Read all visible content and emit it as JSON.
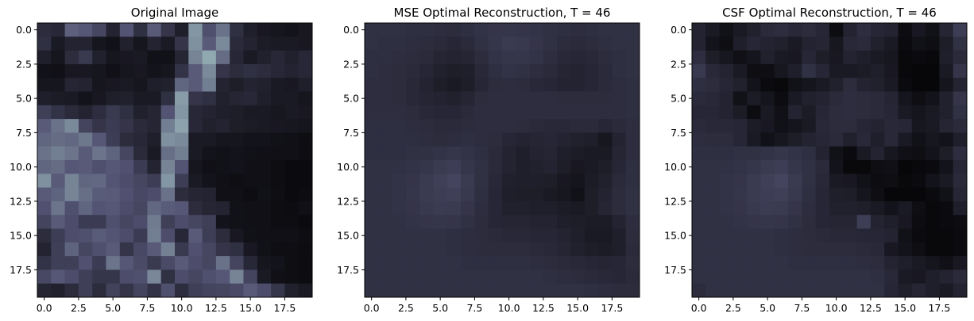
{
  "chart_data": [
    {
      "type": "heatmap",
      "title": "Original Image",
      "colormap": "bone",
      "vmin": 0,
      "vmax": 255,
      "grid": false,
      "xlim": [
        -0.5,
        19.5
      ],
      "ylim": [
        19.5,
        -0.5
      ],
      "xticks": [
        "0.0",
        "2.5",
        "5.0",
        "7.5",
        "10.0",
        "12.5",
        "15.0",
        "17.5"
      ],
      "yticks": [
        "0.0",
        "2.5",
        "5.0",
        "7.5",
        "10.0",
        "12.5",
        "15.0",
        "17.5"
      ],
      "values": [
        [
          50,
          45,
          105,
          98,
          80,
          40,
          95,
          55,
          100,
          60,
          35,
          150,
          90,
          120,
          55,
          35,
          28,
          25,
          22,
          28
        ],
        [
          55,
          30,
          40,
          40,
          25,
          20,
          38,
          25,
          40,
          30,
          60,
          145,
          100,
          140,
          48,
          40,
          32,
          30,
          30,
          28
        ],
        [
          35,
          25,
          50,
          65,
          38,
          25,
          28,
          30,
          20,
          20,
          42,
          135,
          165,
          115,
          44,
          30,
          38,
          45,
          38,
          45
        ],
        [
          20,
          18,
          28,
          28,
          25,
          18,
          25,
          28,
          22,
          25,
          58,
          100,
          140,
          60,
          50,
          55,
          50,
          45,
          40,
          45
        ],
        [
          25,
          25,
          42,
          40,
          25,
          28,
          30,
          25,
          35,
          38,
          110,
          100,
          130,
          40,
          34,
          40,
          38,
          30,
          28,
          35
        ],
        [
          35,
          32,
          30,
          22,
          28,
          35,
          38,
          30,
          30,
          55,
          155,
          60,
          55,
          38,
          42,
          45,
          35,
          30,
          30,
          25
        ],
        [
          72,
          58,
          48,
          40,
          52,
          65,
          55,
          38,
          42,
          95,
          150,
          45,
          40,
          35,
          34,
          30,
          30,
          26,
          30,
          28
        ],
        [
          100,
          120,
          140,
          78,
          60,
          68,
          60,
          48,
          42,
          130,
          160,
          45,
          38,
          40,
          34,
          32,
          30,
          28,
          26,
          24
        ],
        [
          110,
          115,
          112,
          125,
          98,
          70,
          50,
          45,
          35,
          145,
          140,
          30,
          30,
          25,
          25,
          22,
          22,
          20,
          18,
          15
        ],
        [
          120,
          130,
          122,
          100,
          122,
          108,
          80,
          48,
          30,
          118,
          130,
          30,
          22,
          20,
          22,
          20,
          18,
          18,
          18,
          15
        ],
        [
          110,
          115,
          98,
          100,
          90,
          98,
          92,
          68,
          40,
          135,
          95,
          25,
          18,
          20,
          22,
          18,
          18,
          15,
          12,
          12
        ],
        [
          145,
          100,
          135,
          110,
          112,
          95,
          88,
          80,
          70,
          150,
          70,
          30,
          22,
          18,
          16,
          18,
          18,
          15,
          12,
          12
        ],
        [
          100,
          108,
          135,
          118,
          102,
          100,
          92,
          82,
          88,
          120,
          50,
          42,
          40,
          18,
          18,
          15,
          20,
          16,
          12,
          14
        ],
        [
          92,
          122,
          90,
          110,
          95,
          98,
          88,
          80,
          112,
          102,
          98,
          50,
          42,
          40,
          20,
          18,
          18,
          15,
          14,
          18
        ],
        [
          78,
          100,
          88,
          68,
          68,
          90,
          80,
          88,
          128,
          72,
          88,
          80,
          72,
          22,
          20,
          18,
          18,
          15,
          15,
          12
        ],
        [
          50,
          70,
          88,
          90,
          102,
          95,
          88,
          68,
          130,
          88,
          45,
          100,
          70,
          50,
          28,
          20,
          18,
          18,
          18,
          15
        ],
        [
          40,
          72,
          108,
          80,
          90,
          100,
          60,
          82,
          100,
          132,
          65,
          92,
          80,
          60,
          55,
          28,
          20,
          16,
          16,
          14
        ],
        [
          58,
          72,
          72,
          92,
          68,
          122,
          98,
          85,
          65,
          85,
          100,
          88,
          80,
          120,
          78,
          45,
          25,
          22,
          16,
          14
        ],
        [
          82,
          98,
          88,
          72,
          62,
          62,
          88,
          90,
          138,
          55,
          88,
          80,
          90,
          98,
          135,
          78,
          30,
          18,
          16,
          14
        ],
        [
          42,
          38,
          50,
          72,
          50,
          75,
          60,
          78,
          58,
          90,
          52,
          72,
          78,
          80,
          85,
          100,
          88,
          62,
          38,
          30
        ]
      ]
    },
    {
      "type": "heatmap",
      "title": "MSE Optimal Reconstruction, T = 46",
      "colormap": "bone",
      "vmin": 0,
      "vmax": 255,
      "grid": false,
      "xlim": [
        -0.5,
        19.5
      ],
      "ylim": [
        19.5,
        -0.5
      ],
      "xticks": [
        "0.0",
        "2.5",
        "5.0",
        "7.5",
        "10.0",
        "12.5",
        "15.0",
        "17.5"
      ],
      "yticks": [
        "0.0",
        "2.5",
        "5.0",
        "7.5",
        "10.0",
        "12.5",
        "15.0",
        "17.5"
      ],
      "values": [
        [
          56,
          56,
          56,
          54,
          54,
          52,
          50,
          54,
          58,
          60,
          62,
          60,
          58,
          56,
          54,
          52,
          54,
          56,
          56,
          56
        ],
        [
          56,
          54,
          54,
          52,
          50,
          48,
          44,
          48,
          56,
          62,
          66,
          64,
          60,
          56,
          50,
          48,
          50,
          54,
          56,
          56
        ],
        [
          54,
          54,
          52,
          50,
          48,
          42,
          40,
          42,
          50,
          58,
          62,
          62,
          58,
          52,
          46,
          44,
          46,
          50,
          54,
          56
        ],
        [
          54,
          52,
          50,
          48,
          44,
          38,
          34,
          36,
          46,
          54,
          58,
          56,
          52,
          48,
          42,
          40,
          44,
          48,
          54,
          56
        ],
        [
          52,
          52,
          50,
          46,
          40,
          34,
          30,
          34,
          44,
          50,
          52,
          50,
          46,
          44,
          40,
          40,
          44,
          48,
          52,
          54
        ],
        [
          52,
          52,
          50,
          46,
          42,
          40,
          38,
          42,
          50,
          52,
          52,
          52,
          52,
          52,
          50,
          50,
          50,
          50,
          52,
          54
        ],
        [
          52,
          52,
          52,
          50,
          46,
          44,
          44,
          48,
          52,
          52,
          52,
          52,
          52,
          52,
          52,
          52,
          52,
          52,
          52,
          54
        ],
        [
          54,
          54,
          54,
          52,
          50,
          48,
          48,
          50,
          52,
          52,
          52,
          50,
          48,
          46,
          46,
          48,
          48,
          44,
          48,
          52
        ],
        [
          54,
          54,
          54,
          54,
          52,
          50,
          52,
          54,
          52,
          50,
          44,
          40,
          42,
          44,
          40,
          38,
          36,
          26,
          40,
          52
        ],
        [
          54,
          54,
          54,
          56,
          56,
          58,
          62,
          58,
          54,
          48,
          40,
          36,
          40,
          42,
          36,
          32,
          30,
          30,
          42,
          52
        ],
        [
          56,
          56,
          56,
          58,
          62,
          66,
          70,
          62,
          56,
          48,
          40,
          36,
          38,
          40,
          34,
          28,
          30,
          34,
          44,
          54
        ],
        [
          56,
          56,
          58,
          60,
          66,
          72,
          78,
          66,
          56,
          46,
          38,
          36,
          36,
          34,
          28,
          24,
          32,
          38,
          48,
          54
        ],
        [
          56,
          56,
          58,
          62,
          66,
          70,
          72,
          64,
          54,
          44,
          36,
          34,
          34,
          30,
          26,
          20,
          34,
          40,
          50,
          56
        ],
        [
          56,
          56,
          58,
          60,
          64,
          68,
          66,
          60,
          52,
          44,
          38,
          38,
          36,
          36,
          32,
          30,
          34,
          42,
          50,
          56
        ],
        [
          56,
          56,
          56,
          58,
          60,
          62,
          60,
          56,
          50,
          44,
          42,
          42,
          40,
          40,
          36,
          34,
          32,
          32,
          40,
          52
        ],
        [
          56,
          56,
          56,
          56,
          56,
          56,
          54,
          52,
          50,
          48,
          46,
          46,
          44,
          44,
          40,
          36,
          30,
          30,
          36,
          50
        ],
        [
          56,
          56,
          56,
          56,
          56,
          56,
          54,
          52,
          50,
          50,
          50,
          50,
          48,
          46,
          42,
          38,
          34,
          32,
          36,
          48
        ],
        [
          56,
          56,
          56,
          56,
          56,
          56,
          56,
          54,
          54,
          54,
          54,
          54,
          52,
          50,
          48,
          46,
          44,
          42,
          44,
          50
        ],
        [
          56,
          56,
          56,
          56,
          56,
          56,
          56,
          56,
          56,
          56,
          56,
          56,
          56,
          54,
          52,
          50,
          48,
          46,
          44,
          48
        ],
        [
          56,
          56,
          56,
          56,
          56,
          56,
          56,
          56,
          56,
          56,
          56,
          56,
          56,
          56,
          56,
          56,
          54,
          52,
          50,
          50
        ]
      ]
    },
    {
      "type": "heatmap",
      "title": "CSF Optimal Reconstruction, T = 46",
      "colormap": "bone",
      "vmin": 0,
      "vmax": 255,
      "grid": false,
      "xlim": [
        -0.5,
        19.5
      ],
      "ylim": [
        19.5,
        -0.5
      ],
      "xticks": [
        "0.0",
        "2.5",
        "5.0",
        "7.5",
        "10.0",
        "12.5",
        "15.0",
        "17.5"
      ],
      "yticks": [
        "0.0",
        "2.5",
        "5.0",
        "7.5",
        "10.0",
        "12.5",
        "15.0",
        "17.5"
      ],
      "values": [
        [
          40,
          30,
          20,
          30,
          38,
          48,
          52,
          46,
          50,
          44,
          14,
          40,
          52,
          44,
          40,
          14,
          28,
          20,
          42,
          70
        ],
        [
          40,
          22,
          16,
          36,
          44,
          40,
          38,
          30,
          40,
          42,
          26,
          46,
          48,
          38,
          30,
          12,
          20,
          16,
          34,
          56
        ],
        [
          52,
          34,
          26,
          18,
          24,
          38,
          30,
          28,
          44,
          34,
          28,
          40,
          36,
          30,
          26,
          10,
          12,
          10,
          36,
          48
        ],
        [
          64,
          46,
          40,
          30,
          16,
          16,
          26,
          36,
          56,
          44,
          30,
          30,
          32,
          36,
          28,
          10,
          8,
          8,
          30,
          60
        ],
        [
          54,
          50,
          44,
          38,
          22,
          12,
          10,
          20,
          24,
          30,
          38,
          50,
          40,
          38,
          30,
          12,
          8,
          8,
          24,
          40
        ],
        [
          48,
          46,
          40,
          20,
          32,
          24,
          14,
          30,
          38,
          40,
          48,
          52,
          50,
          48,
          42,
          24,
          16,
          22,
          38,
          60
        ],
        [
          44,
          44,
          40,
          32,
          14,
          30,
          18,
          40,
          32,
          44,
          50,
          52,
          50,
          48,
          44,
          30,
          24,
          30,
          38,
          56
        ],
        [
          48,
          46,
          46,
          44,
          32,
          28,
          20,
          24,
          30,
          46,
          50,
          50,
          44,
          40,
          46,
          44,
          26,
          30,
          42,
          48
        ],
        [
          52,
          50,
          50,
          44,
          30,
          20,
          26,
          34,
          40,
          44,
          48,
          38,
          46,
          36,
          46,
          30,
          20,
          26,
          22,
          36
        ],
        [
          54,
          54,
          54,
          56,
          56,
          58,
          62,
          58,
          54,
          40,
          20,
          12,
          30,
          40,
          26,
          18,
          16,
          22,
          34,
          52
        ],
        [
          56,
          56,
          56,
          58,
          62,
          66,
          70,
          62,
          56,
          48,
          22,
          10,
          10,
          16,
          18,
          8,
          10,
          12,
          22,
          44
        ],
        [
          56,
          56,
          58,
          60,
          66,
          72,
          78,
          66,
          56,
          46,
          30,
          28,
          20,
          14,
          16,
          10,
          12,
          22,
          30,
          48
        ],
        [
          56,
          56,
          58,
          62,
          66,
          70,
          72,
          64,
          54,
          44,
          36,
          34,
          24,
          16,
          8,
          8,
          8,
          12,
          20,
          44
        ],
        [
          56,
          56,
          58,
          60,
          64,
          68,
          66,
          60,
          52,
          44,
          38,
          38,
          36,
          30,
          22,
          30,
          16,
          10,
          12,
          36
        ],
        [
          56,
          56,
          56,
          58,
          60,
          62,
          60,
          56,
          50,
          44,
          42,
          42,
          70,
          40,
          36,
          28,
          14,
          10,
          12,
          14
        ],
        [
          56,
          56,
          56,
          56,
          56,
          56,
          54,
          52,
          50,
          48,
          46,
          46,
          44,
          44,
          40,
          20,
          12,
          10,
          10,
          12
        ],
        [
          56,
          56,
          56,
          56,
          56,
          56,
          54,
          52,
          50,
          50,
          50,
          50,
          48,
          46,
          28,
          22,
          16,
          10,
          10,
          12
        ],
        [
          56,
          56,
          56,
          56,
          56,
          56,
          56,
          54,
          54,
          54,
          54,
          54,
          52,
          50,
          40,
          36,
          30,
          24,
          18,
          28
        ],
        [
          56,
          56,
          56,
          56,
          56,
          56,
          56,
          56,
          56,
          56,
          56,
          56,
          56,
          54,
          46,
          30,
          28,
          36,
          40,
          48
        ],
        [
          50,
          56,
          56,
          56,
          56,
          56,
          56,
          56,
          56,
          56,
          56,
          56,
          56,
          56,
          44,
          36,
          42,
          36,
          30,
          40
        ]
      ]
    }
  ]
}
